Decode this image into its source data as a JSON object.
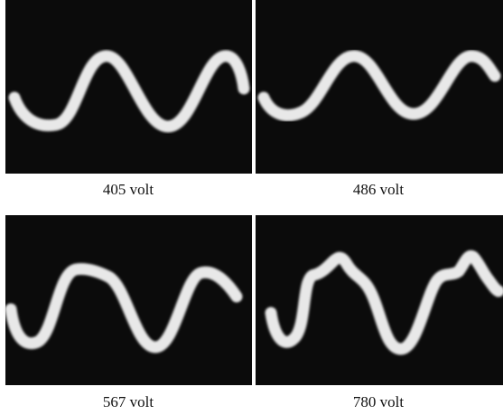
{
  "panels": [
    {
      "caption": "405 volt"
    },
    {
      "caption": "486 volt"
    },
    {
      "caption": "567 volt"
    },
    {
      "caption": "780 volt"
    }
  ]
}
